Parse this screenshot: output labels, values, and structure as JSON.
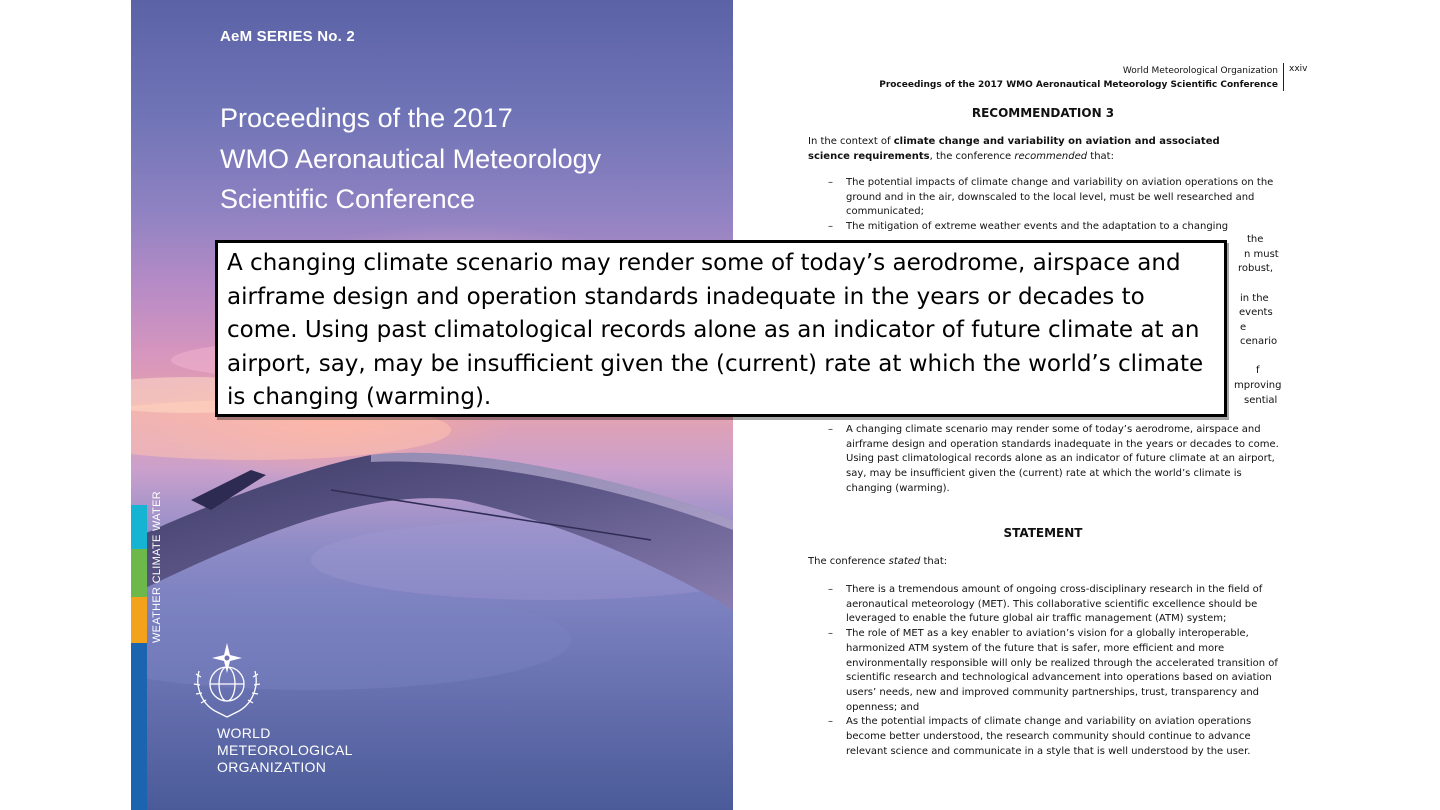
{
  "cover": {
    "series_label": "AeM SERIES No. 2",
    "title_lines": [
      "Proceedings of the 2017",
      "WMO Aeronautical Meteorology",
      "Scientific Conference"
    ],
    "side_label": "WEATHER CLIMATE WATER",
    "org_name_lines": [
      "WORLD",
      "METEOROLOGICAL",
      "ORGANIZATION"
    ],
    "stripe_colors": [
      "#14b4d2",
      "#6cb84a",
      "#f2a31b",
      "#1b64b0"
    ]
  },
  "page": {
    "running_head_org": "World Meteorological Organization",
    "running_head_title": "Proceedings of the 2017 WMO Aeronautical Meteorology Scientific Conference",
    "page_number": "xxiv",
    "recommendation_heading": "RECOMMENDATION 3",
    "recommendation_intro": {
      "before": "In the context of ",
      "bold": "climate change and variability on aviation and associated science requirements",
      "middle": ", the conference ",
      "italic": "recommended",
      "after": " that:"
    },
    "recommendation_items": [
      "The potential impacts of climate change and variability on aviation operations on the ground and in the air, downscaled to the local level, must be well researched and communicated;",
      "The mitigation of extreme weather events and the adaptation to a changing"
    ],
    "recommendation_visible_fragments": [
      "the",
      "n must",
      "robust,",
      "in the",
      "events",
      "e",
      "cenario",
      "f",
      "mproving",
      "sential"
    ],
    "recommendation_last_item": "A changing climate scenario may render some of today’s aerodrome, airspace and airframe design and operation standards inadequate in the years or decades to come. Using past climatological records alone as an indicator of future climate at an airport, say, may be insufficient given the (current) rate at which the world’s climate is changing (warming).",
    "statement_heading": "STATEMENT",
    "statement_intro": {
      "before": "The conference ",
      "italic": "stated",
      "after": " that:"
    },
    "statement_items": [
      "There is a tremendous amount of ongoing cross-disciplinary research in the field of aeronautical meteorology (MET). This collaborative scientific excellence should be leveraged to enable the future global air traffic management (ATM) system;",
      "The role of MET as a key enabler to aviation’s vision for a globally interoperable, harmonized ATM system of the future that is safer, more efficient and more environmentally responsible will only be realized through the accelerated transition of scientific research and technological advancement into operations based on aviation users’ needs, new and improved community partnerships, trust, transparency and openness; and",
      "As the potential impacts of climate change and variability on aviation operations become better understood, the research community should continue to advance relevant science and communicate in a style that is well understood by the user."
    ]
  },
  "callout": {
    "text": "A changing climate scenario may render some of today’s aerodrome, airspace and airframe design and operation standards inadequate in the years or decades to come. Using past climatological records alone as an indicator of future climate at an airport, say, may be insufficient given the (current) rate at which the world’s climate is changing (warming)."
  }
}
